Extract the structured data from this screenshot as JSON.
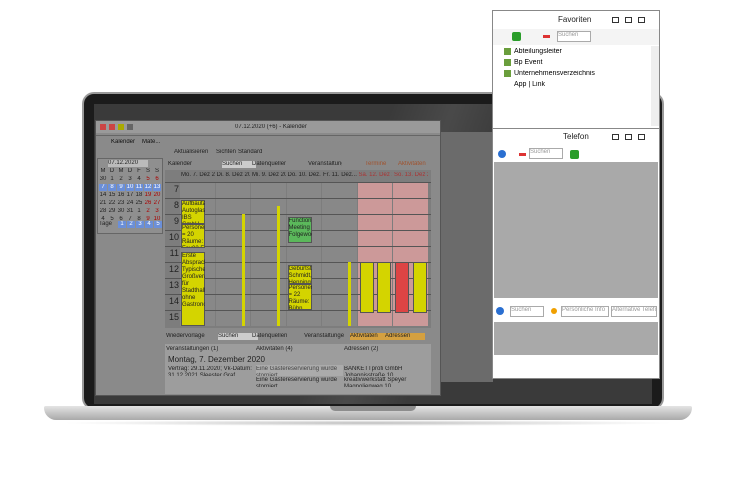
{
  "app": {
    "window_title": "07.12.2020 (+6) - Kalender",
    "tabs": [
      "Kalender",
      "Mate..."
    ],
    "toolbar": [
      "Aktualisieren",
      "Sichten",
      "Standard"
    ],
    "calendar_toolbar": [
      "Kalender",
      "Suchen",
      "Datenquellen",
      "Veranstaltungen",
      "Termine",
      "Aktivitäten"
    ],
    "mini_calendar": {
      "date": "07.12.2020",
      "weekdays": [
        "M",
        "D",
        "M",
        "D",
        "F",
        "S",
        "S"
      ],
      "weeks": [
        [
          30,
          1,
          2,
          3,
          4,
          5,
          6
        ],
        [
          7,
          8,
          9,
          10,
          11,
          12,
          13
        ],
        [
          14,
          15,
          16,
          17,
          18,
          19,
          20
        ],
        [
          21,
          22,
          23,
          24,
          25,
          26,
          27
        ],
        [
          28,
          29,
          30,
          31,
          1,
          2,
          3
        ],
        [
          4,
          5,
          6,
          7,
          8,
          9,
          10
        ]
      ],
      "days_label": "Tage",
      "days": [
        1,
        2,
        3,
        4,
        5
      ]
    },
    "day_headers": [
      "Mo. 7. Dez 2...",
      "Di. 8. Dez 20...",
      "Mi. 9. Dez 20...",
      "Do. 10. Dez...",
      "Fr. 11. Dez...",
      "Sa. 12. Dez 2",
      "So. 13. Dez 2"
    ],
    "hours": [
      7,
      8,
      9,
      10,
      11,
      12,
      13,
      14,
      15
    ],
    "events": [
      "Aufbautag Autoglas IBS GmbH",
      "Personenzahl = 20 Räume: Foy02,Foy75,...",
      "Erste Absprache: Typische Großveranstaltung für Stadthallen ohne Gastronomie",
      "Function Meeting Folgewoche",
      "Geburtstag Schmidt, Henning",
      "Personenzahl = 22 Räume: Bühn..."
    ],
    "bottom_toolbar": [
      "Wiedervorlage",
      "Suchen",
      "Datenquellen",
      "Veranstaltungen",
      "Aktivitäten",
      "Adressen"
    ],
    "list_headers": [
      "Veranstaltungen (1)",
      "Aktivitäten (4)",
      "Adressen (2)"
    ],
    "list_date": "Montag, 7. Dezember 2020",
    "list_rows": [
      [
        "Vertrag: 29.11.2020; Vk-Datum: 31.12.2021 Sleester Graf Gastronomie",
        "Eine Gästereservierung wurde storniert",
        "BANKETTprofi GmbH Johannisstraße 10"
      ],
      [
        "",
        "Eine Gästereservierung wurde storniert",
        "kreativwerkstatt Speyer Magnolienweg 10"
      ]
    ]
  },
  "favorites": {
    "title": "Favoriten",
    "search": "Suchen",
    "items": [
      "Abteilungsleiter",
      "Bp Event",
      "Unternehmensverzeichnis",
      "App | Link"
    ]
  },
  "phone": {
    "title": "Telefon",
    "search": "Suchen",
    "fields": [
      "Suchen",
      "Persönliche Info",
      "Alternative Telefo"
    ]
  }
}
